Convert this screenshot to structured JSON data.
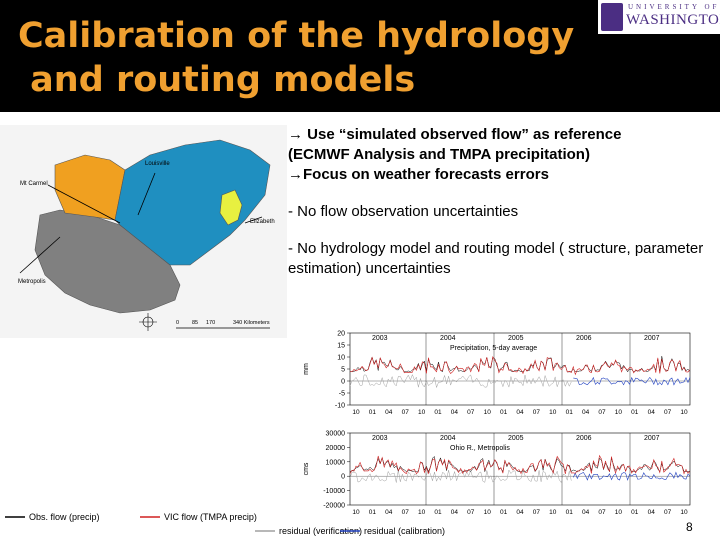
{
  "slide": {
    "title": "Calibration of the hydrology\n and routing models",
    "page_number": "8",
    "logo": {
      "top": "UNIVERSITY OF",
      "bottom": "WASHINGTON"
    }
  },
  "bullets": [
    {
      "text": "→ Use “simulated observed flow” as reference"
    },
    {
      "text": "(ECMWF Analysis and TMPA precipitation)"
    },
    {
      "text": "→Focus on weather forecasts errors"
    },
    {
      "text": "- No flow observation uncertainties"
    },
    {
      "text": "- No  hydrology model and routing model ( structure, parameter estimation) uncertainties"
    }
  ],
  "map": {
    "labels": [
      "Louisville",
      "Mt Carmel",
      "Elizabeth",
      "Metropolis"
    ],
    "scale": [
      "0",
      "85",
      "170",
      "340 Kilometers"
    ],
    "colors": {
      "orange": "#f0a020",
      "blue": "#1f8fc0",
      "gray": "#808080",
      "yellow": "#e8f040"
    }
  },
  "chart_data": [
    {
      "type": "line",
      "title": "Precipitation, 5-day average",
      "ylabel": "mm",
      "ylim": [
        -10,
        20
      ],
      "yticks": [
        20,
        15,
        10,
        5,
        0,
        -5,
        -10
      ],
      "years": [
        "2003",
        "2004",
        "2005",
        "2006",
        "2007"
      ],
      "months": [
        "10",
        "01",
        "04",
        "07",
        "10",
        "01",
        "04",
        "07",
        "10",
        "01",
        "04",
        "07",
        "10",
        "01",
        "04",
        "07",
        "10",
        "01",
        "04",
        "07",
        "10"
      ]
    },
    {
      "type": "line",
      "title": "Ohio R., Metropolis",
      "ylabel": "cms",
      "ylim": [
        -20000,
        30000
      ],
      "yticks": [
        30000,
        20000,
        10000,
        0,
        -10000,
        -20000
      ],
      "years": [
        "2003",
        "2004",
        "2005",
        "2006",
        "2007"
      ],
      "months": [
        "10",
        "01",
        "04",
        "07",
        "10",
        "01",
        "04",
        "07",
        "10",
        "01",
        "04",
        "07",
        "10",
        "01",
        "04",
        "07",
        "10",
        "01",
        "04",
        "07",
        "10"
      ]
    }
  ],
  "legend": [
    {
      "label": "Obs. flow (precip)",
      "color": "#000000"
    },
    {
      "label": "VIC flow (TMPA precip)",
      "color": "#d02020"
    },
    {
      "label": "residual (verification)",
      "color": "#a0a0a0"
    },
    {
      "label": "residual (calibration)",
      "color": "#2040c0"
    }
  ]
}
